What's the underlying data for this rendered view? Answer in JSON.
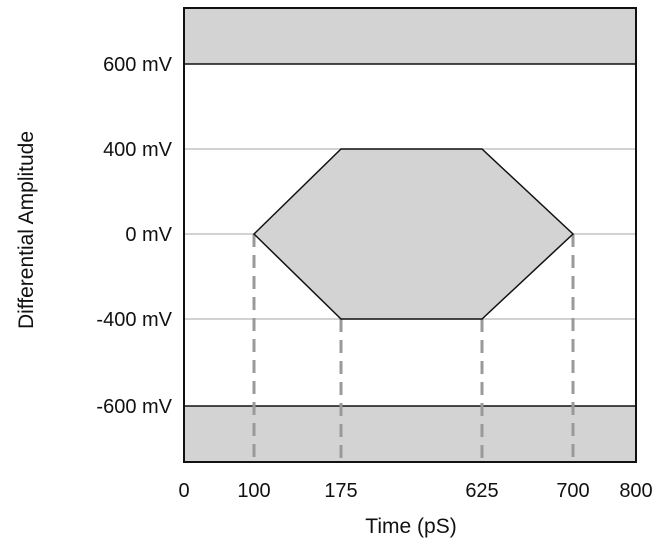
{
  "diagram": {
    "y_axis_title": "Differential Amplitude",
    "x_axis_title": "Time (pS)",
    "y_ticks": [
      {
        "value": 600,
        "label": "600 mV"
      },
      {
        "value": 400,
        "label": "400 mV"
      },
      {
        "value": 0,
        "label": "0 mV"
      },
      {
        "value": -400,
        "label": "-400 mV"
      },
      {
        "value": -600,
        "label": "-600 mV"
      }
    ],
    "x_ticks": [
      {
        "value": 0,
        "label": "0"
      },
      {
        "value": 100,
        "label": "100"
      },
      {
        "value": 175,
        "label": "175"
      },
      {
        "value": 625,
        "label": "625"
      },
      {
        "value": 700,
        "label": "700"
      },
      {
        "value": 800,
        "label": "800"
      }
    ],
    "eye_mask": {
      "vertices_ps_mv": [
        [
          100,
          0
        ],
        [
          175,
          400
        ],
        [
          625,
          400
        ],
        [
          700,
          0
        ],
        [
          625,
          -400
        ],
        [
          175,
          -400
        ]
      ]
    },
    "dashed_guides_ps": [
      100,
      175,
      625,
      700
    ],
    "colors": {
      "mask_fill": "#d3d3d3",
      "outline": "#111111",
      "gridline": "#b8b8b8",
      "dashed_guide": "#9a9a9a"
    }
  }
}
